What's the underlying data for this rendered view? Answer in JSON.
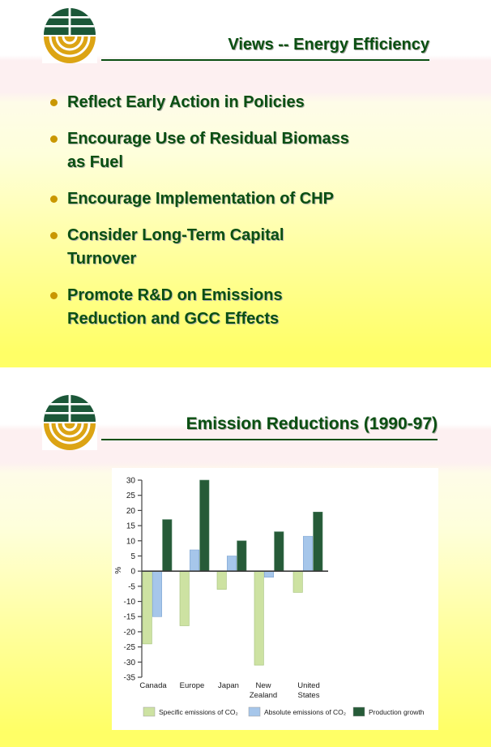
{
  "slide1": {
    "title": "Views -- Energy Efficiency",
    "bullets": [
      "Reflect Early Action in Policies",
      "Encourage Use of Residual Biomass\nas Fuel",
      "Encourage Implementation of CHP",
      "Consider Long-Term Capital\nTurnover",
      "Promote R&D on Emissions\nReduction and GCC Effects"
    ]
  },
  "slide2": {
    "title": "Emission Reductions (1990-97)"
  },
  "logo": {
    "description": "globe emblem: dark green gridded top hemisphere, gold concentric-ring bottom hemisphere",
    "green": "#1b5738",
    "gold": "#dca414"
  },
  "colors": {
    "heading_green": "#0a4f12",
    "bullet_gold": "#c99700",
    "slide_yellow": "#ffff66",
    "zero_line": "#3a3a3a"
  },
  "chart_data": {
    "type": "bar",
    "title": "",
    "categories": [
      "Canada",
      "Europe",
      "Japan",
      "New Zealand",
      "United States"
    ],
    "series": [
      {
        "name": "Specific emissions of CO₂",
        "color": "#cde2a2",
        "edge": "#a3c278",
        "values": [
          -24,
          -18,
          -6,
          -31,
          -7
        ]
      },
      {
        "name": "Absolute emissions of CO₂",
        "color": "#a6c6ea",
        "edge": "#7fa6d2",
        "values": [
          -15,
          7,
          5,
          -2,
          11.5
        ]
      },
      {
        "name": "Production growth",
        "color": "#265b38",
        "edge": "#4a7d5e",
        "values": [
          17,
          30,
          10,
          13,
          19.5
        ]
      }
    ],
    "xlabel": "",
    "ylabel": "%",
    "ylim": [
      -35,
      30
    ],
    "ytick_step": 5,
    "grid": false,
    "legend_position": "bottom"
  }
}
